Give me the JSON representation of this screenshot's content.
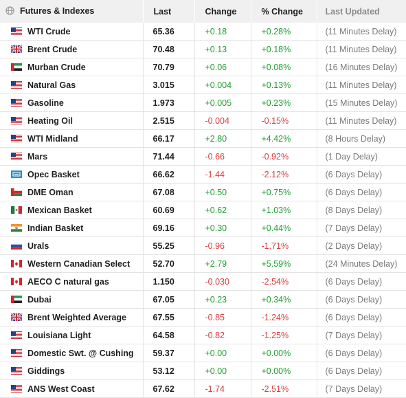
{
  "header": {
    "name": "Futures & Indexes",
    "last": "Last",
    "change": "Change",
    "pct_change": "% Change",
    "last_updated": "Last Updated"
  },
  "colors": {
    "up": "#1e9e2e",
    "down": "#d93c3c",
    "header_bg": "#f0f0f0"
  },
  "rows": [
    {
      "flag": "us",
      "name": "WTI Crude",
      "last": "65.36",
      "change": "+0.18",
      "pct": "+0.28%",
      "updated": "(11 Minutes Delay)",
      "dir": "up"
    },
    {
      "flag": "uk",
      "name": "Brent Crude",
      "last": "70.48",
      "change": "+0.13",
      "pct": "+0.18%",
      "updated": "(11 Minutes Delay)",
      "dir": "up"
    },
    {
      "flag": "ae",
      "name": "Murban Crude",
      "last": "70.79",
      "change": "+0.06",
      "pct": "+0.08%",
      "updated": "(16 Minutes Delay)",
      "dir": "up"
    },
    {
      "flag": "us",
      "name": "Natural Gas",
      "last": "3.015",
      "change": "+0.004",
      "pct": "+0.13%",
      "updated": "(11 Minutes Delay)",
      "dir": "up"
    },
    {
      "flag": "us",
      "name": "Gasoline",
      "last": "1.973",
      "change": "+0.005",
      "pct": "+0.23%",
      "updated": "(15 Minutes Delay)",
      "dir": "up"
    },
    {
      "flag": "us",
      "name": "Heating Oil",
      "last": "2.515",
      "change": "-0.004",
      "pct": "-0.15%",
      "updated": "(11 Minutes Delay)",
      "dir": "down"
    },
    {
      "flag": "us",
      "name": "WTI Midland",
      "last": "66.17",
      "change": "+2.80",
      "pct": "+4.42%",
      "updated": "(8 Hours Delay)",
      "dir": "up"
    },
    {
      "flag": "us",
      "name": "Mars",
      "last": "71.44",
      "change": "-0.66",
      "pct": "-0.92%",
      "updated": "(1 Day Delay)",
      "dir": "down"
    },
    {
      "flag": "opec",
      "name": "Opec Basket",
      "last": "66.62",
      "change": "-1.44",
      "pct": "-2.12%",
      "updated": "(6 Days Delay)",
      "dir": "down"
    },
    {
      "flag": "om",
      "name": "DME Oman",
      "last": "67.08",
      "change": "+0.50",
      "pct": "+0.75%",
      "updated": "(6 Days Delay)",
      "dir": "up"
    },
    {
      "flag": "mx",
      "name": "Mexican Basket",
      "last": "60.69",
      "change": "+0.62",
      "pct": "+1.03%",
      "updated": "(8 Days Delay)",
      "dir": "up"
    },
    {
      "flag": "in",
      "name": "Indian Basket",
      "last": "69.16",
      "change": "+0.30",
      "pct": "+0.44%",
      "updated": "(7 Days Delay)",
      "dir": "up"
    },
    {
      "flag": "ru",
      "name": "Urals",
      "last": "55.25",
      "change": "-0.96",
      "pct": "-1.71%",
      "updated": "(2 Days Delay)",
      "dir": "down"
    },
    {
      "flag": "ca",
      "name": "Western Canadian Select",
      "last": "52.70",
      "change": "+2.79",
      "pct": "+5.59%",
      "updated": "(24 Minutes Delay)",
      "dir": "up"
    },
    {
      "flag": "ca",
      "name": "AECO C natural gas",
      "last": "1.150",
      "change": "-0.030",
      "pct": "-2.54%",
      "updated": "(6 Days Delay)",
      "dir": "down"
    },
    {
      "flag": "ae",
      "name": "Dubai",
      "last": "67.05",
      "change": "+0.23",
      "pct": "+0.34%",
      "updated": "(6 Days Delay)",
      "dir": "up"
    },
    {
      "flag": "uk",
      "name": "Brent Weighted Average",
      "last": "67.55",
      "change": "-0.85",
      "pct": "-1.24%",
      "updated": "(6 Days Delay)",
      "dir": "down"
    },
    {
      "flag": "us",
      "name": "Louisiana Light",
      "last": "64.58",
      "change": "-0.82",
      "pct": "-1.25%",
      "updated": "(7 Days Delay)",
      "dir": "down"
    },
    {
      "flag": "us",
      "name": "Domestic Swt. @ Cushing",
      "last": "59.37",
      "change": "+0.00",
      "pct": "+0.00%",
      "updated": "(6 Days Delay)",
      "dir": "up"
    },
    {
      "flag": "us",
      "name": "Giddings",
      "last": "53.12",
      "change": "+0.00",
      "pct": "+0.00%",
      "updated": "(6 Days Delay)",
      "dir": "up"
    },
    {
      "flag": "us",
      "name": "ANS West Coast",
      "last": "67.62",
      "change": "-1.74",
      "pct": "-2.51%",
      "updated": "(7 Days Delay)",
      "dir": "down"
    }
  ]
}
